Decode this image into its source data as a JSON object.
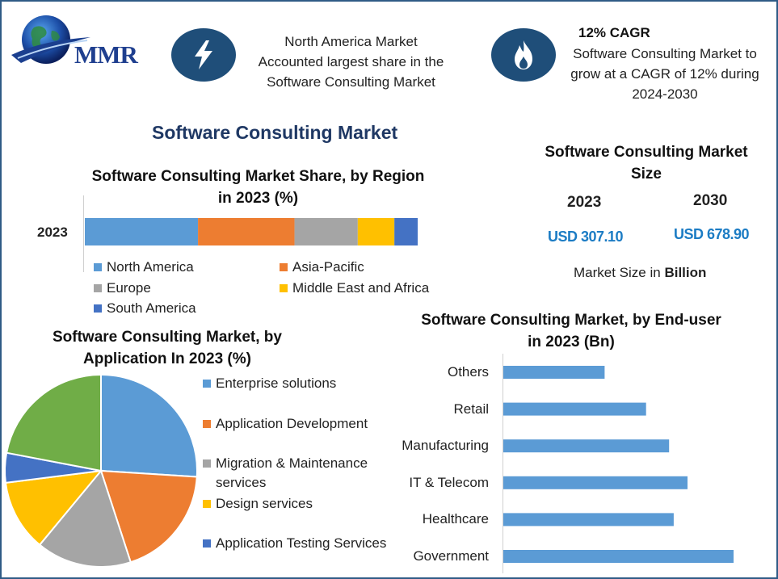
{
  "logo": {
    "text": "MMR"
  },
  "header": {
    "box1": {
      "icon": "lightning-icon",
      "lines": [
        "North America Market",
        "Accounted largest share in the",
        "Software Consulting Market"
      ]
    },
    "box2": {
      "icon": "flame-icon",
      "title": "12% CAGR",
      "lines": [
        "Software Consulting Market to",
        "grow at a CAGR of 12% during",
        "2024-2030"
      ]
    }
  },
  "main_title": "Software Consulting Market",
  "market_size": {
    "title_lines": [
      "Software Consulting Market",
      "Size"
    ],
    "year1": "2023",
    "year2": "2030",
    "value1": "USD 307.10",
    "value2": "USD 678.90",
    "note_prefix": "Market Size in ",
    "note_bold": "Billion"
  },
  "colors": {
    "frame": "#2f5b86",
    "icon_bg": "#1f4e79",
    "title_navy": "#1f3864",
    "value_blue": "#1c7cc4",
    "bar_blue": "#5b9bd5",
    "orange": "#ed7d31",
    "gray": "#a5a5a5",
    "yellow": "#ffc000",
    "dark_blue": "#4472c4",
    "green": "#70ad47"
  },
  "chart_data": [
    {
      "type": "bar",
      "orientation": "horizontal-stacked",
      "title_lines": [
        "Software Consulting Market Share, by Region",
        "in 2023 (%)"
      ],
      "categories": [
        "2023"
      ],
      "series": [
        {
          "name": "North America",
          "values": [
            34
          ],
          "color": "#5b9bd5"
        },
        {
          "name": "Asia-Pacific",
          "values": [
            29
          ],
          "color": "#ed7d31"
        },
        {
          "name": "Europe",
          "values": [
            19
          ],
          "color": "#a5a5a5"
        },
        {
          "name": "Middle East and Africa",
          "values": [
            11
          ],
          "color": "#ffc000"
        },
        {
          "name": "South America",
          "values": [
            7
          ],
          "color": "#4472c4"
        }
      ],
      "legend": "bottom"
    },
    {
      "type": "pie",
      "title_lines": [
        "Software Consulting Market, by",
        "Application In 2023 (%)"
      ],
      "slices": [
        {
          "name": "Enterprise solutions",
          "value": 26,
          "color": "#5b9bd5"
        },
        {
          "name": "Application Development",
          "value": 19,
          "color": "#ed7d31"
        },
        {
          "name": "Migration & Maintenance services",
          "value": 16,
          "color": "#a5a5a5"
        },
        {
          "name": "Design services",
          "value": 12,
          "color": "#ffc000"
        },
        {
          "name": "Application Testing Services",
          "value": 5,
          "color": "#4472c4"
        },
        {
          "name": "",
          "value": 22,
          "color": "#70ad47"
        }
      ],
      "legend_lines": [
        [
          "Enterprise solutions"
        ],
        [
          "Application Development"
        ],
        [
          "Migration & Maintenance",
          "services"
        ],
        [
          "Design services"
        ],
        [
          "Application Testing Services"
        ]
      ],
      "legend": "right"
    },
    {
      "type": "bar",
      "orientation": "horizontal",
      "title_lines": [
        "Software Consulting Market, by End-user",
        "in 2023 (Bn)"
      ],
      "categories": [
        "Others",
        "Retail",
        "Manufacturing",
        "IT & Telecom",
        "Healthcare",
        "Government"
      ],
      "values": [
        22,
        31,
        36,
        40,
        37,
        50
      ],
      "xlim": [
        0,
        50
      ],
      "color": "#5b9bd5"
    }
  ]
}
